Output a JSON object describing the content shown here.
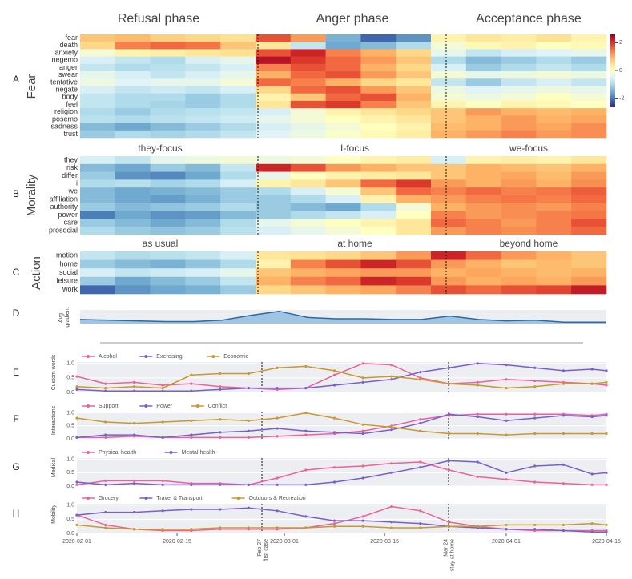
{
  "chart_data": [
    {
      "type": "heatmap",
      "panel": "A",
      "ylabel": "Fear",
      "phase_labels": [
        "Refusal phase",
        "Anger phase",
        "Acceptance phase"
      ],
      "rows": [
        "fear",
        "death",
        "anxiety",
        "negemo",
        "anger",
        "swear",
        "tentative",
        "negate",
        "body",
        "feel",
        "religion",
        "posemo",
        "sadness",
        "trust"
      ],
      "values": [
        [
          0.8,
          0.9,
          0.7,
          0.6,
          0.5,
          1.8,
          1.2,
          -1.5,
          -2.2,
          -1.8,
          0.2,
          0.4,
          0.3,
          0.5,
          0.2
        ],
        [
          0.6,
          1.4,
          1.6,
          1.5,
          0.8,
          0.4,
          -0.8,
          -1.6,
          -1.4,
          -1.0,
          -0.2,
          0.1,
          0.2,
          0.0,
          0.1
        ],
        [
          -0.2,
          0.2,
          0.3,
          0.4,
          0.5,
          1.8,
          2.2,
          1.4,
          1.0,
          0.6,
          -0.4,
          -0.8,
          -0.6,
          -0.5,
          -0.4
        ],
        [
          -0.6,
          -0.8,
          -1.0,
          -0.6,
          -0.4,
          2.4,
          2.0,
          1.6,
          1.2,
          0.8,
          -1.0,
          -1.4,
          -1.2,
          -1.0,
          -1.2
        ],
        [
          -0.8,
          -1.0,
          -0.9,
          -0.8,
          -0.6,
          1.4,
          1.8,
          1.6,
          1.0,
          0.6,
          -0.6,
          -1.2,
          -1.0,
          -0.8,
          -1.0
        ],
        [
          -0.4,
          -0.6,
          -0.8,
          -0.6,
          -0.4,
          1.0,
          1.6,
          1.8,
          1.2,
          0.8,
          -0.2,
          -0.4,
          -0.3,
          -0.2,
          -0.3
        ],
        [
          -0.3,
          -0.5,
          -0.4,
          -0.4,
          -0.2,
          1.6,
          1.4,
          1.0,
          0.6,
          0.4,
          -0.8,
          -1.2,
          -0.8,
          -0.6,
          -0.8
        ],
        [
          -0.6,
          -0.8,
          -0.7,
          -0.8,
          -0.6,
          0.6,
          1.6,
          1.8,
          1.2,
          0.8,
          -0.3,
          -0.5,
          -0.4,
          -0.3,
          -0.4
        ],
        [
          -0.8,
          -1.0,
          -1.0,
          -1.2,
          -1.0,
          0.2,
          0.8,
          1.6,
          1.8,
          1.0,
          -0.2,
          -0.3,
          -0.2,
          0.0,
          -0.2
        ],
        [
          -0.8,
          -1.0,
          -1.1,
          -1.2,
          -1.0,
          0.4,
          1.8,
          2.0,
          1.4,
          0.8,
          0.2,
          0.0,
          0.2,
          0.1,
          0.0
        ],
        [
          -1.0,
          -1.2,
          -1.0,
          -0.9,
          -0.8,
          -0.6,
          -0.2,
          0.2,
          0.4,
          0.6,
          0.8,
          1.2,
          1.0,
          0.9,
          1.0
        ],
        [
          -0.9,
          -1.0,
          -0.9,
          -0.8,
          -0.7,
          -0.4,
          -0.2,
          0.0,
          0.2,
          0.4,
          0.8,
          1.0,
          1.2,
          1.0,
          1.1
        ],
        [
          -1.4,
          -1.6,
          -1.4,
          -1.2,
          -1.0,
          -0.6,
          -0.4,
          -0.2,
          0.0,
          0.2,
          0.9,
          1.0,
          1.2,
          1.1,
          1.3
        ],
        [
          -1.2,
          -1.0,
          -1.1,
          -1.0,
          -0.8,
          -0.5,
          -0.3,
          -0.1,
          0.1,
          0.3,
          1.0,
          1.2,
          1.4,
          1.2,
          1.3
        ]
      ],
      "zlim": [
        -2.6,
        2.6
      ],
      "zticks": [
        2,
        0,
        -2
      ]
    },
    {
      "type": "heatmap",
      "panel": "B",
      "ylabel": "Morality",
      "phase_labels": [
        "they-focus",
        "I-focus",
        "we-focus"
      ],
      "rows": [
        "they",
        "risk",
        "differ",
        "i",
        "we",
        "affiliation",
        "authority",
        "power",
        "care",
        "prosocial"
      ],
      "values": [
        [
          -0.6,
          -0.8,
          -0.4,
          -0.3,
          -0.2,
          -0.3,
          -0.2,
          0.0,
          0.2,
          0.3,
          -0.6,
          0.2,
          0.3,
          0.2,
          0.4
        ],
        [
          -1.4,
          -1.6,
          -1.2,
          -1.4,
          -0.8,
          2.2,
          1.8,
          1.2,
          1.0,
          0.8,
          0.8,
          1.0,
          0.9,
          0.8,
          1.0
        ],
        [
          -1.2,
          -1.8,
          -1.9,
          -1.6,
          -1.0,
          -0.4,
          0.0,
          0.2,
          0.3,
          0.4,
          0.8,
          1.0,
          1.1,
          0.9,
          1.2
        ],
        [
          -1.0,
          -0.9,
          -1.1,
          -1.0,
          -0.6,
          0.2,
          0.4,
          0.8,
          1.6,
          2.0,
          1.2,
          1.0,
          1.2,
          1.0,
          1.3
        ],
        [
          -1.4,
          -1.6,
          -1.5,
          -1.4,
          -1.2,
          -1.0,
          -0.6,
          -0.2,
          0.8,
          1.6,
          1.4,
          1.6,
          1.4,
          1.5,
          1.7
        ],
        [
          -1.4,
          -1.6,
          -1.7,
          -1.5,
          -1.2,
          -1.2,
          -1.0,
          -0.6,
          0.2,
          1.0,
          1.2,
          1.4,
          1.5,
          1.4,
          1.6
        ],
        [
          -1.2,
          -1.4,
          -1.3,
          -1.2,
          -1.0,
          -1.2,
          -1.4,
          -1.6,
          -1.0,
          -0.2,
          1.0,
          1.2,
          1.3,
          1.2,
          1.4
        ],
        [
          -2.0,
          -1.6,
          -1.8,
          -1.7,
          -1.4,
          -1.2,
          -1.0,
          -0.8,
          -0.6,
          0.0,
          1.4,
          1.2,
          1.3,
          1.4,
          1.5
        ],
        [
          -1.2,
          -1.4,
          -1.6,
          -1.4,
          -1.0,
          -0.4,
          -0.2,
          0.0,
          0.2,
          0.4,
          1.6,
          1.4,
          1.2,
          1.4,
          1.8
        ],
        [
          -1.0,
          -1.2,
          -1.3,
          -1.2,
          -0.9,
          -0.6,
          -0.4,
          -0.2,
          0.0,
          0.4,
          1.2,
          1.4,
          1.3,
          1.4,
          1.6
        ]
      ],
      "zlim": [
        -2.6,
        2.6
      ]
    },
    {
      "type": "heatmap",
      "panel": "C",
      "ylabel": "Action",
      "phase_labels": [
        "as usual",
        "at home",
        "beyond home"
      ],
      "rows": [
        "motion",
        "home",
        "social",
        "leisure",
        "work"
      ],
      "values": [
        [
          -0.8,
          -1.0,
          -0.9,
          -0.8,
          -0.6,
          0.4,
          0.5,
          0.6,
          0.8,
          1.2,
          2.2,
          1.6,
          1.2,
          1.0,
          0.8
        ],
        [
          -1.2,
          -1.4,
          -1.5,
          -1.3,
          -1.0,
          0.2,
          1.4,
          1.8,
          2.2,
          1.8,
          1.2,
          1.0,
          0.8,
          0.9,
          0.8
        ],
        [
          -0.6,
          -0.8,
          -0.7,
          -0.6,
          -0.4,
          0.8,
          1.0,
          1.1,
          1.2,
          1.2,
          1.0,
          1.1,
          1.0,
          0.9,
          1.0
        ],
        [
          -1.2,
          -1.6,
          -1.4,
          -1.2,
          -0.8,
          1.0,
          1.4,
          1.6,
          2.2,
          2.0,
          1.2,
          1.0,
          1.1,
          1.0,
          1.2
        ],
        [
          -2.2,
          -1.8,
          -1.6,
          -1.5,
          -1.2,
          0.6,
          0.8,
          1.0,
          1.1,
          1.4,
          1.8,
          1.6,
          1.8,
          1.9,
          2.3
        ]
      ],
      "zlim": [
        -2.6,
        2.6
      ]
    },
    {
      "type": "area",
      "panel": "D",
      "ylabel": [
        "Avg.",
        "gradient"
      ],
      "color": "#2b6aa3",
      "x": [
        "2020-02-01",
        "2020-02-05",
        "2020-02-09",
        "2020-02-13",
        "2020-02-17",
        "2020-02-21",
        "2020-02-25",
        "2020-02-29",
        "2020-03-04",
        "2020-03-08",
        "2020-03-12",
        "2020-03-16",
        "2020-03-20",
        "2020-03-24",
        "2020-03-28",
        "2020-04-01",
        "2020-04-05",
        "2020-04-09",
        "2020-04-13",
        "2020-04-15"
      ],
      "values": [
        0.3,
        0.25,
        0.2,
        0.15,
        0.15,
        0.25,
        0.6,
        0.9,
        0.45,
        0.35,
        0.35,
        0.3,
        0.3,
        0.55,
        0.3,
        0.2,
        0.25,
        0.1,
        0.1,
        0.1
      ],
      "xlim": [
        "2020-02-01",
        "2020-04-15"
      ],
      "ylim": [
        0,
        1
      ]
    },
    {
      "type": "line",
      "panel": "E",
      "ylabel": "Custom words",
      "x": [
        "2020-02-01",
        "2020-02-05",
        "2020-02-09",
        "2020-02-13",
        "2020-02-17",
        "2020-02-21",
        "2020-02-25",
        "2020-02-29",
        "2020-03-04",
        "2020-03-08",
        "2020-03-12",
        "2020-03-16",
        "2020-03-20",
        "2020-03-24",
        "2020-03-28",
        "2020-04-01",
        "2020-04-05",
        "2020-04-09",
        "2020-04-13",
        "2020-04-15"
      ],
      "series": [
        {
          "name": "Alcohol",
          "color": "#e8649c",
          "values": [
            0.55,
            0.3,
            0.35,
            0.25,
            0.3,
            0.2,
            0.15,
            0.1,
            0.15,
            0.6,
            1.0,
            0.95,
            0.5,
            0.3,
            0.35,
            0.45,
            0.4,
            0.35,
            0.3,
            0.25
          ]
        },
        {
          "name": "Exercising",
          "color": "#7b5fc9",
          "values": [
            0.1,
            0.05,
            0.05,
            0.05,
            0.05,
            0.1,
            0.15,
            0.15,
            0.15,
            0.25,
            0.35,
            0.45,
            0.7,
            0.85,
            1.0,
            0.95,
            0.85,
            0.75,
            0.8,
            0.75
          ]
        },
        {
          "name": "Economic",
          "color": "#c8992e",
          "values": [
            0.2,
            0.15,
            0.2,
            0.15,
            0.6,
            0.65,
            0.65,
            0.85,
            0.9,
            0.75,
            0.5,
            0.55,
            0.45,
            0.3,
            0.25,
            0.15,
            0.2,
            0.3,
            0.3,
            0.35
          ]
        }
      ],
      "xlim": [
        "2020-02-01",
        "2020-04-15"
      ],
      "ylim": [
        0,
        1.05
      ],
      "yticks": [
        {
          "value": 0,
          "label": "0.0"
        },
        {
          "value": 0.5,
          "label": "0.5"
        },
        {
          "value": 1,
          "label": "1.0"
        }
      ]
    },
    {
      "type": "line",
      "panel": "F",
      "ylabel": "Interactions",
      "x": [
        "2020-02-01",
        "2020-02-05",
        "2020-02-09",
        "2020-02-13",
        "2020-02-17",
        "2020-02-21",
        "2020-02-25",
        "2020-02-29",
        "2020-03-04",
        "2020-03-08",
        "2020-03-12",
        "2020-03-16",
        "2020-03-20",
        "2020-03-24",
        "2020-03-28",
        "2020-04-01",
        "2020-04-05",
        "2020-04-09",
        "2020-04-13",
        "2020-04-15"
      ],
      "series": [
        {
          "name": "Support",
          "color": "#e8649c",
          "values": [
            0.05,
            0.05,
            0.1,
            0.05,
            0.05,
            0.05,
            0.05,
            0.1,
            0.15,
            0.2,
            0.3,
            0.5,
            0.75,
            0.9,
            0.95,
            0.95,
            0.95,
            0.95,
            0.9,
            0.95
          ]
        },
        {
          "name": "Power",
          "color": "#7b5fc9",
          "values": [
            0.05,
            0.15,
            0.15,
            0.05,
            0.15,
            0.25,
            0.3,
            0.4,
            0.3,
            0.25,
            0.2,
            0.35,
            0.6,
            0.95,
            0.85,
            0.7,
            0.8,
            0.9,
            0.85,
            0.9
          ]
        },
        {
          "name": "Conflict",
          "color": "#c8992e",
          "values": [
            0.8,
            0.65,
            0.6,
            0.65,
            0.7,
            0.75,
            0.7,
            0.8,
            1.0,
            0.8,
            0.55,
            0.45,
            0.3,
            0.2,
            0.2,
            0.15,
            0.2,
            0.2,
            0.2,
            0.2
          ]
        }
      ],
      "xlim": [
        "2020-02-01",
        "2020-04-15"
      ],
      "ylim": [
        0,
        1.05
      ],
      "yticks": [
        {
          "value": 0,
          "label": "0.0"
        },
        {
          "value": 0.5,
          "label": "0.5"
        },
        {
          "value": 1,
          "label": "1.0"
        }
      ]
    },
    {
      "type": "line",
      "panel": "G",
      "ylabel": "Medical",
      "x": [
        "2020-02-01",
        "2020-02-05",
        "2020-02-09",
        "2020-02-13",
        "2020-02-17",
        "2020-02-21",
        "2020-02-25",
        "2020-02-29",
        "2020-03-04",
        "2020-03-08",
        "2020-03-12",
        "2020-03-16",
        "2020-03-20",
        "2020-03-24",
        "2020-03-28",
        "2020-04-01",
        "2020-04-05",
        "2020-04-09",
        "2020-04-13",
        "2020-04-15"
      ],
      "series": [
        {
          "name": "Physical health",
          "color": "#e8649c",
          "values": [
            0.05,
            0.2,
            0.2,
            0.2,
            0.1,
            0.1,
            0.05,
            0.3,
            0.6,
            0.7,
            0.75,
            0.85,
            0.9,
            0.6,
            0.35,
            0.25,
            0.15,
            0.1,
            0.05,
            0.05
          ]
        },
        {
          "name": "Mental health",
          "color": "#7b5fc9",
          "values": [
            0.15,
            0.05,
            0.1,
            0.05,
            0.05,
            0.05,
            0.05,
            0.05,
            0.05,
            0.15,
            0.3,
            0.5,
            0.7,
            0.95,
            0.9,
            0.5,
            0.75,
            0.8,
            0.45,
            0.5
          ]
        }
      ],
      "xlim": [
        "2020-02-01",
        "2020-04-15"
      ],
      "ylim": [
        0,
        1.05
      ],
      "yticks": [
        {
          "value": 0,
          "label": "0.0"
        },
        {
          "value": 0.5,
          "label": "0.5"
        },
        {
          "value": 1,
          "label": "1.0"
        }
      ]
    },
    {
      "type": "line",
      "panel": "H",
      "ylabel": "Mobility",
      "x": [
        "2020-02-01",
        "2020-02-05",
        "2020-02-09",
        "2020-02-13",
        "2020-02-17",
        "2020-02-21",
        "2020-02-25",
        "2020-02-29",
        "2020-03-04",
        "2020-03-08",
        "2020-03-12",
        "2020-03-16",
        "2020-03-20",
        "2020-03-24",
        "2020-03-28",
        "2020-04-01",
        "2020-04-05",
        "2020-04-09",
        "2020-04-13",
        "2020-04-15"
      ],
      "series": [
        {
          "name": "Grocery",
          "color": "#e8649c",
          "values": [
            0.65,
            0.3,
            0.15,
            0.1,
            0.1,
            0.15,
            0.15,
            0.15,
            0.2,
            0.35,
            0.6,
            0.95,
            0.8,
            0.4,
            0.25,
            0.15,
            0.1,
            0.1,
            0.1,
            0.1
          ]
        },
        {
          "name": "Travel & Transport",
          "color": "#7b5fc9",
          "values": [
            0.65,
            0.75,
            0.75,
            0.8,
            0.85,
            0.85,
            0.9,
            0.8,
            0.6,
            0.45,
            0.45,
            0.4,
            0.35,
            0.25,
            0.2,
            0.15,
            0.15,
            0.1,
            0.05,
            0.05
          ]
        },
        {
          "name": "Outdoors & Recreation",
          "color": "#c8992e",
          "values": [
            0.3,
            0.2,
            0.15,
            0.15,
            0.15,
            0.2,
            0.2,
            0.2,
            0.2,
            0.25,
            0.25,
            0.2,
            0.2,
            0.25,
            0.25,
            0.3,
            0.3,
            0.3,
            0.35,
            0.3
          ]
        }
      ],
      "xlim": [
        "2020-02-01",
        "2020-04-15"
      ],
      "ylim": [
        0,
        1.05
      ],
      "yticks": [
        {
          "value": 0,
          "label": "0.0"
        },
        {
          "value": 0.5,
          "label": "0.5"
        },
        {
          "value": 1,
          "label": "1.0"
        }
      ],
      "xticks": [
        "2020-02-01",
        "2020-02-15",
        "2020-03-01",
        "2020-03-15",
        "2020-04-01",
        "2020-04-15"
      ],
      "annotations": [
        {
          "x": "2020-02-27",
          "lines": [
            "Feb 27",
            "first case"
          ]
        },
        {
          "x": "2020-03-24",
          "lines": [
            "Mar 24",
            "stay at home"
          ]
        }
      ]
    }
  ]
}
